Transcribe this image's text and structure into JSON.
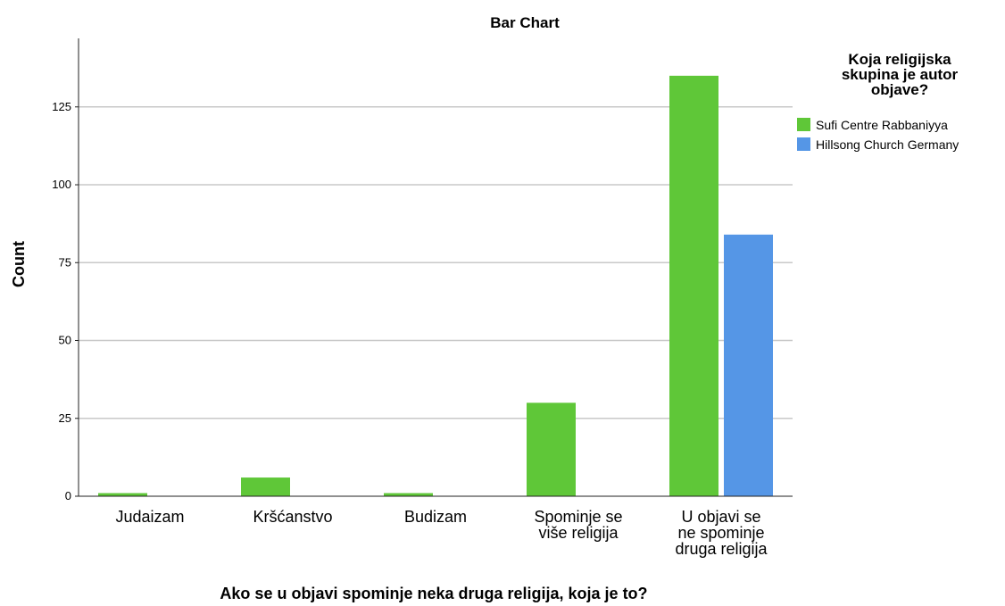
{
  "chart_data": {
    "type": "bar",
    "title": "Bar Chart",
    "xlabel": "Ako se u objavi spominje neka druga religija, koja je to?",
    "ylabel": "Count",
    "ylim": [
      0,
      147
    ],
    "yticks": [
      0,
      25,
      50,
      75,
      100,
      125
    ],
    "grid": true,
    "categories": [
      [
        "Judaizam"
      ],
      [
        "Kršćanstvo"
      ],
      [
        "Budizam"
      ],
      [
        "Spominje se",
        "više religija"
      ],
      [
        "U objavi se",
        "ne spominje",
        "druga religija"
      ]
    ],
    "series": [
      {
        "name": "Sufi Centre Rabbaniyya",
        "color": "#5fc738",
        "values": [
          1,
          6,
          1,
          30,
          135
        ]
      },
      {
        "name": "Hillsong Church Germany",
        "color": "#5596e6",
        "values": [
          0,
          0,
          0,
          0,
          84
        ]
      }
    ],
    "legend": {
      "title": [
        "Koja religijska",
        "skupina je autor",
        "objave?"
      ],
      "position": "right"
    }
  }
}
